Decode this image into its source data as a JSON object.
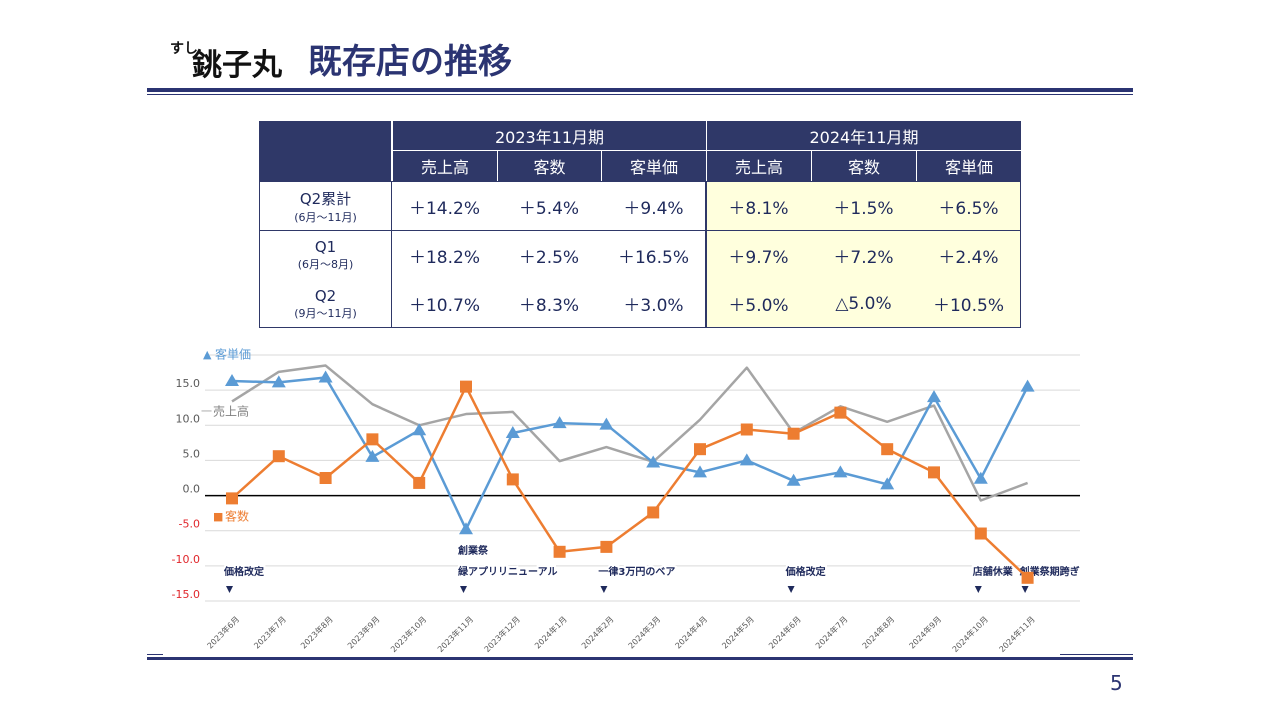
{
  "header": {
    "logo_small": "すし",
    "logo": "銚子丸",
    "title": "既存店の推移"
  },
  "table": {
    "groups": [
      "2023年11月期",
      "2024年11月期"
    ],
    "columns": [
      "売上高",
      "客数",
      "客単価",
      "売上高",
      "客数",
      "客単価"
    ],
    "rows": [
      {
        "label": "Q2累計",
        "sub": "(6月～11月)",
        "cells": [
          "＋14.2%",
          "＋5.4%",
          "＋9.4%",
          "＋8.1%",
          "＋1.5%",
          "＋6.5%"
        ]
      },
      {
        "label": "Q1",
        "sub": "(6月～8月)",
        "cells": [
          "＋18.2%",
          "＋2.5%",
          "＋16.5%",
          "＋9.7%",
          "＋7.2%",
          "＋2.4%"
        ]
      },
      {
        "label": "Q2",
        "sub": "(9月～11月)",
        "cells": [
          "＋10.7%",
          "＋8.3%",
          "＋3.0%",
          "＋5.0%",
          "△5.0%",
          "＋10.5%"
        ]
      }
    ]
  },
  "chart_data": {
    "type": "line",
    "categories": [
      "2023年6月",
      "2023年7月",
      "2023年8月",
      "2023年9月",
      "2023年10月",
      "2023年11月",
      "2023年12月",
      "2024年1月",
      "2024年2月",
      "2024年3月",
      "2024年4月",
      "2024年5月",
      "2024年6月",
      "2024年7月",
      "2024年8月",
      "2024年9月",
      "2024年10月",
      "2024年11月"
    ],
    "series": [
      {
        "name": "客単価",
        "color": "#5b9bd5",
        "marker": "triangle",
        "values": [
          16.3,
          16.1,
          16.8,
          5.5,
          9.3,
          -4.8,
          8.9,
          10.3,
          10.1,
          4.7,
          3.3,
          5.0,
          2.1,
          3.3,
          1.6,
          14.0,
          2.4,
          15.5
        ]
      },
      {
        "name": "売上高",
        "color": "#a5a5a5",
        "marker": "none",
        "values": [
          13.4,
          17.6,
          18.5,
          13.0,
          10.0,
          11.6,
          11.9,
          4.9,
          6.9,
          4.8,
          10.8,
          18.2,
          8.9,
          12.7,
          10.5,
          12.8,
          -0.7,
          1.8
        ]
      },
      {
        "name": "客数",
        "color": "#ed7d31",
        "marker": "square",
        "values": [
          -0.4,
          5.6,
          2.5,
          8.0,
          1.8,
          15.5,
          2.3,
          -8.0,
          -7.3,
          -2.4,
          6.6,
          9.4,
          8.8,
          11.8,
          6.6,
          3.3,
          -5.4,
          -11.7
        ]
      }
    ],
    "ylim": [
      -15,
      20
    ],
    "yticks": [
      {
        "value": -15,
        "label": "-15.0"
      },
      {
        "value": -10,
        "label": "-10.0"
      },
      {
        "value": -5,
        "label": "-5.0"
      },
      {
        "value": 0,
        "label": "0.0"
      },
      {
        "value": 5,
        "label": "5.0"
      },
      {
        "value": 10,
        "label": "10.0"
      },
      {
        "value": 15,
        "label": "15.0"
      }
    ],
    "grid": true,
    "annotations": [
      {
        "category": "2023年6月",
        "text": [
          "価格改定"
        ]
      },
      {
        "category": "2023年11月",
        "text": [
          "創業祭",
          "緑アプリリニューアル"
        ]
      },
      {
        "category": "2024年2月",
        "text": [
          "一律3万円のベア"
        ]
      },
      {
        "category": "2024年6月",
        "text": [
          "価格改定"
        ]
      },
      {
        "category": "2024年10月",
        "text": [
          "店舗休業"
        ]
      },
      {
        "category": "2024年11月",
        "text": [
          "創業祭期跨ぎ"
        ]
      }
    ]
  },
  "page_number": "5"
}
